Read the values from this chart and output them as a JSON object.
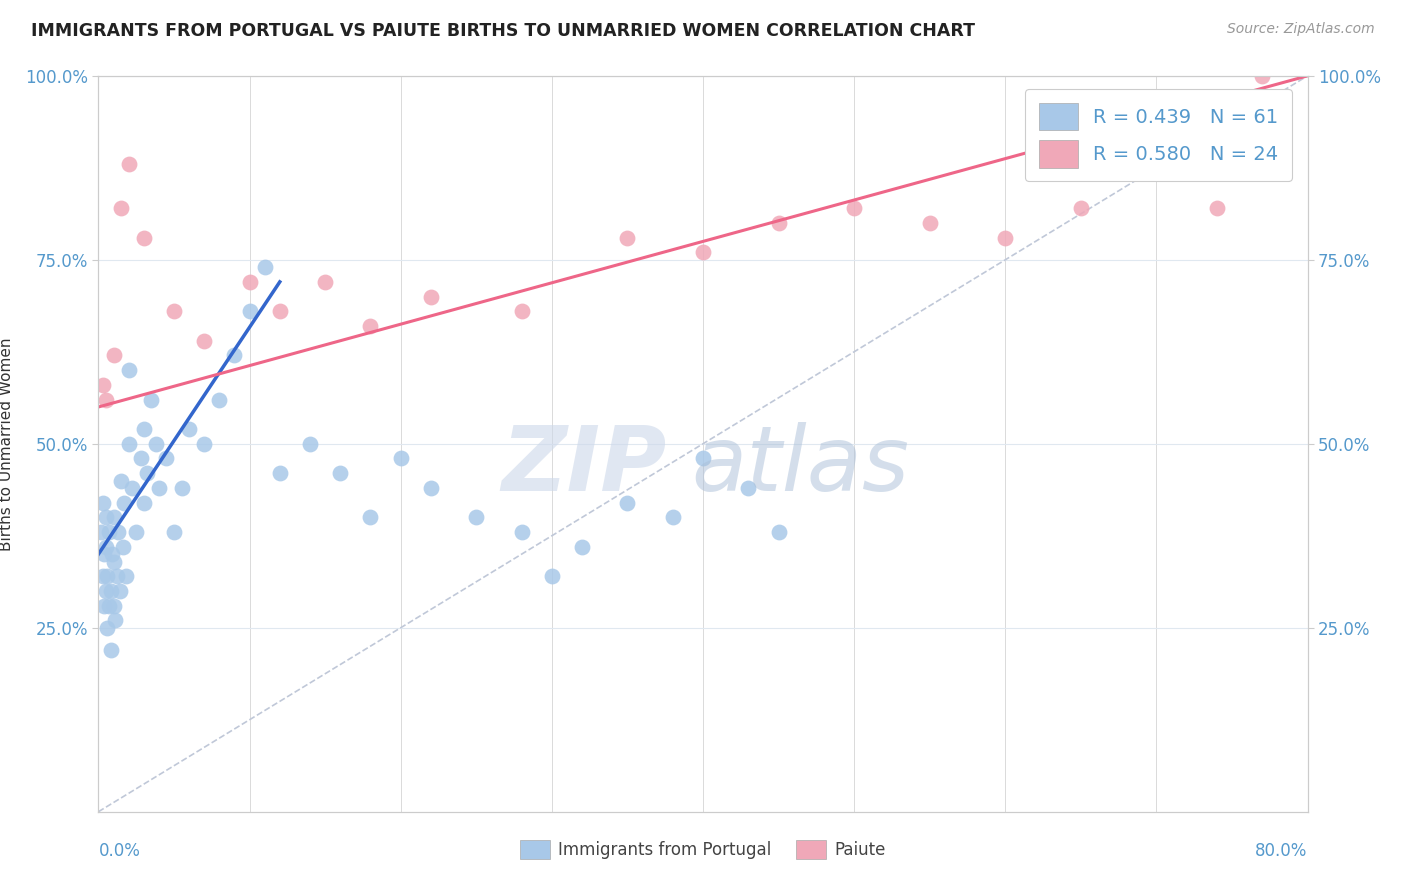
{
  "title": "IMMIGRANTS FROM PORTUGAL VS PAIUTE BIRTHS TO UNMARRIED WOMEN CORRELATION CHART",
  "source": "Source: ZipAtlas.com",
  "ylabel": "Births to Unmarried Women",
  "legend_line1": "R = 0.439   N = 61",
  "legend_line2": "R = 0.580   N = 24",
  "legend_label1": "Immigrants from Portugal",
  "legend_label2": "Paiute",
  "blue_dot_color": "#a8c8e8",
  "pink_dot_color": "#f0a8b8",
  "blue_line_color": "#3366cc",
  "pink_line_color": "#ee6688",
  "dashed_line_color": "#c0c8d8",
  "grid_color": "#e0e8f0",
  "tick_color": "#5599cc",
  "xmin": 0.0,
  "xmax": 80.0,
  "ymin": 0.0,
  "ymax": 100.0,
  "blue_x": [
    0.2,
    0.3,
    0.3,
    0.4,
    0.4,
    0.5,
    0.5,
    0.5,
    0.6,
    0.6,
    0.7,
    0.7,
    0.8,
    0.8,
    0.9,
    1.0,
    1.0,
    1.0,
    1.1,
    1.2,
    1.3,
    1.4,
    1.5,
    1.6,
    1.7,
    1.8,
    2.0,
    2.0,
    2.2,
    2.5,
    2.8,
    3.0,
    3.0,
    3.2,
    3.5,
    3.8,
    4.0,
    4.5,
    5.0,
    5.5,
    6.0,
    7.0,
    8.0,
    9.0,
    10.0,
    11.0,
    12.0,
    14.0,
    16.0,
    18.0,
    20.0,
    22.0,
    25.0,
    28.0,
    30.0,
    32.0,
    35.0,
    38.0,
    40.0,
    43.0,
    45.0
  ],
  "blue_y": [
    38,
    32,
    42,
    28,
    35,
    30,
    36,
    40,
    25,
    32,
    28,
    38,
    22,
    30,
    35,
    28,
    34,
    40,
    26,
    32,
    38,
    30,
    45,
    36,
    42,
    32,
    50,
    60,
    44,
    38,
    48,
    42,
    52,
    46,
    56,
    50,
    44,
    48,
    38,
    44,
    52,
    50,
    56,
    62,
    68,
    74,
    46,
    50,
    46,
    40,
    48,
    44,
    40,
    38,
    32,
    36,
    42,
    40,
    48,
    44,
    38
  ],
  "pink_x": [
    0.3,
    0.5,
    1.0,
    1.5,
    2.0,
    3.0,
    5.0,
    7.0,
    10.0,
    12.0,
    15.0,
    18.0,
    22.0,
    28.0,
    35.0,
    40.0,
    45.0,
    50.0,
    55.0,
    60.0,
    65.0,
    70.0,
    74.0,
    77.0
  ],
  "pink_y": [
    58,
    56,
    62,
    82,
    88,
    78,
    68,
    64,
    72,
    68,
    72,
    66,
    70,
    68,
    78,
    76,
    80,
    82,
    80,
    78,
    82,
    88,
    82,
    100
  ],
  "blue_line_x0": 0.0,
  "blue_line_x1": 12.0,
  "blue_line_y0": 35.0,
  "blue_line_y1": 72.0,
  "pink_line_x0": 0.0,
  "pink_line_x1": 80.0,
  "pink_line_y0": 55.0,
  "pink_line_y1": 100.0,
  "dash_x0": 0.0,
  "dash_x1": 80.0,
  "dash_y0": 0.0,
  "dash_y1": 100.0
}
